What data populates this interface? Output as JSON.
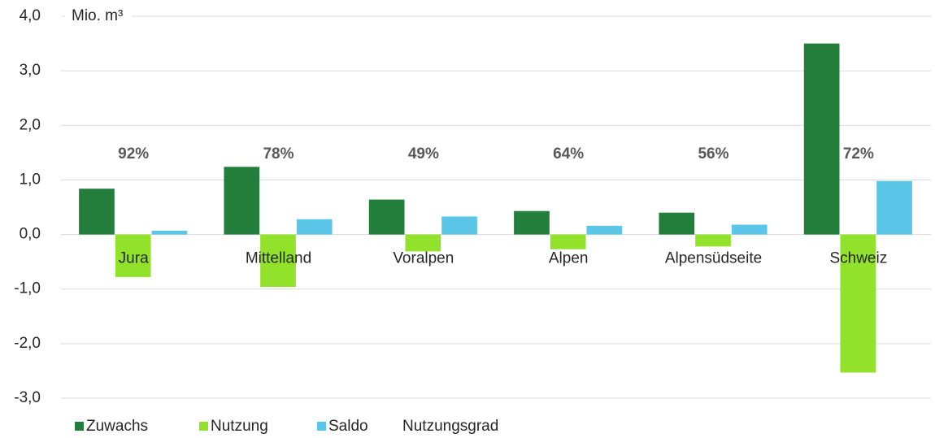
{
  "chart_data": {
    "type": "bar",
    "y_axis_label": "Mio. m³",
    "categories": [
      "Jura",
      "Mittelland",
      "Voralpen",
      "Alpen",
      "Alpensüdseite",
      "Schweiz"
    ],
    "series": [
      {
        "name": "Zuwachs",
        "color": "#237d3b",
        "values": [
          0.84,
          1.24,
          0.64,
          0.43,
          0.4,
          3.5
        ]
      },
      {
        "name": "Nutzung",
        "color": "#92e22c",
        "values": [
          -0.78,
          -0.96,
          -0.31,
          -0.27,
          -0.22,
          -2.53
        ]
      },
      {
        "name": "Saldo",
        "color": "#5bc6e8",
        "values": [
          0.07,
          0.28,
          0.33,
          0.16,
          0.18,
          0.98
        ]
      }
    ],
    "ratio": {
      "name": "Nutzungsgrad",
      "values": [
        92,
        78,
        49,
        64,
        56,
        72
      ],
      "value_labels": [
        "92%",
        "78%",
        "49%",
        "64%",
        "56%",
        "72%"
      ]
    },
    "ylim": [
      -3,
      4
    ],
    "yticks": [
      {
        "value": -3,
        "label": "-3,0"
      },
      {
        "value": -2,
        "label": "-2,0"
      },
      {
        "value": -1,
        "label": "-1,0"
      },
      {
        "value": 0,
        "label": "0,0"
      },
      {
        "value": 1,
        "label": "1,0"
      },
      {
        "value": 2,
        "label": "2,0"
      },
      {
        "value": 3,
        "label": "3,0"
      },
      {
        "value": 4,
        "label": "4,0"
      }
    ],
    "grid": true
  }
}
